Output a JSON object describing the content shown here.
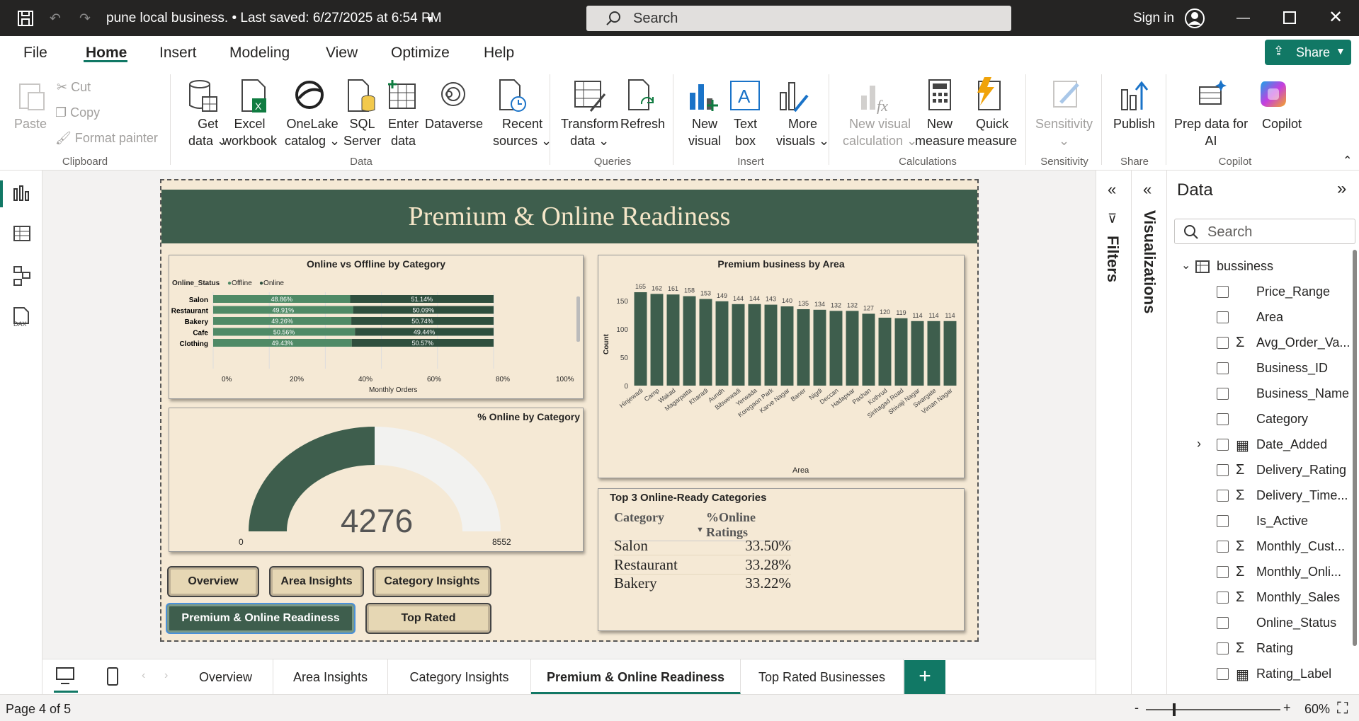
{
  "titlebar": {
    "title": "pune local business. • Last saved: 6/27/2025 at 6:54 PM",
    "search_placeholder": "Search",
    "sign_in": "Sign in"
  },
  "menu": {
    "items": [
      "File",
      "Home",
      "Insert",
      "Modeling",
      "View",
      "Optimize",
      "Help"
    ],
    "active": "Home",
    "share": "Share"
  },
  "ribbon": {
    "paste": "Paste",
    "cut": "Cut",
    "copy": "Copy",
    "format_painter": "Format painter",
    "get_data": "Get",
    "get_data2": "data",
    "excel": "Excel",
    "excel2": "workbook",
    "onelake": "OneLake",
    "onelake2": "catalog",
    "sql": "SQL",
    "sql2": "Server",
    "enter": "Enter",
    "enter2": "data",
    "dataverse": "Dataverse",
    "recent": "Recent",
    "recent2": "sources",
    "transform": "Transform",
    "transform2": "data",
    "refresh": "Refresh",
    "new_visual": "New",
    "new_visual2": "visual",
    "text_box": "Text",
    "text_box2": "box",
    "more_visuals": "More",
    "more_visuals2": "visuals",
    "new_visual_calc": "New visual",
    "new_visual_calc2": "calculation",
    "new_measure": "New",
    "new_measure2": "measure",
    "quick_measure": "Quick",
    "quick_measure2": "measure",
    "sensitivity": "Sensitivity",
    "publish": "Publish",
    "prep_ai": "Prep data for",
    "prep_ai2": "AI",
    "copilot": "Copilot",
    "groups": {
      "clipboard": "Clipboard",
      "data": "Data",
      "queries": "Queries",
      "insert": "Insert",
      "calculations": "Calculations",
      "sensitivity": "Sensitivity",
      "share": "Share",
      "copilot": "Copilot"
    }
  },
  "report": {
    "title": "Premium & Online Readiness",
    "bar100": {
      "title": "Online vs Offline by Category",
      "legend_title": "Online_Status",
      "legend": [
        "Offline",
        "Online"
      ],
      "xlabel": "Monthly Orders",
      "ticks": [
        "0%",
        "20%",
        "40%",
        "60%",
        "80%",
        "100%"
      ]
    },
    "gauge": {
      "title": "% Online by Category",
      "value": "4276",
      "min": "0",
      "max": "8552"
    },
    "column": {
      "title": "Premium business by Area",
      "xlabel": "Area",
      "ylabel": "Count",
      "yticks": [
        "0",
        "50",
        "100",
        "150"
      ]
    },
    "table": {
      "title": "Top 3 Online-Ready Categories",
      "headers": [
        "Category",
        "%Online Ratings"
      ],
      "rows": [
        [
          "Salon",
          "33.50%"
        ],
        [
          "Restaurant",
          "33.28%"
        ],
        [
          "Bakery",
          "33.22%"
        ]
      ]
    },
    "buttons": [
      "Overview",
      "Area Insights",
      "Category Insights",
      "Premium & Online Readiness",
      "Top Rated"
    ]
  },
  "chart_data": [
    {
      "type": "bar",
      "title": "Online vs Offline by Category",
      "categories": [
        "Salon",
        "Restaurant",
        "Bakery",
        "Cafe",
        "Clothing"
      ],
      "series": [
        {
          "name": "Offline",
          "values": [
            48.86,
            49.91,
            49.26,
            50.56,
            49.43
          ],
          "labels": [
            "48.86%",
            "49.91%",
            "49.26%",
            "50.56%",
            "49.43%"
          ]
        },
        {
          "name": "Online",
          "values": [
            51.14,
            50.09,
            50.74,
            49.44,
            50.57
          ],
          "labels": [
            "51.14%",
            "50.09%",
            "50.74%",
            "49.44%",
            "50.57%"
          ]
        }
      ],
      "xlabel": "Monthly Orders",
      "xlim": [
        0,
        100
      ],
      "colors": [
        "#4f8a66",
        "#2f4f3e"
      ]
    },
    {
      "type": "bar",
      "title": "Premium business by Area",
      "categories": [
        "Hinjewadi",
        "Camp",
        "Wakad",
        "Magarpatta",
        "Kharadi",
        "Aundh",
        "Bibwewadi",
        "Yerwada",
        "Koregaon Park",
        "Karve Nagar",
        "Baner",
        "Nigdi",
        "Deccan",
        "Hadapsar",
        "Pashan",
        "Kothrud",
        "Sinhagad Road",
        "Shivaji Nagar",
        "Swargate",
        "Viman Nagar"
      ],
      "values": [
        165,
        162,
        161,
        158,
        153,
        149,
        144,
        144,
        143,
        140,
        135,
        134,
        132,
        132,
        127,
        120,
        119,
        114,
        114,
        114
      ],
      "xlabel": "Area",
      "ylabel": "Count",
      "ylim": [
        0,
        170
      ],
      "color": "#3e5e4d"
    }
  ],
  "filters_label": "Filters",
  "viz_label": "Visualizations",
  "data_pane": {
    "title": "Data",
    "search_placeholder": "Search",
    "table_name": "bussiness",
    "fields": [
      {
        "name": "Price_Range",
        "sigma": ""
      },
      {
        "name": "Area",
        "sigma": ""
      },
      {
        "name": "Avg_Order_Va...",
        "sigma": "Σ"
      },
      {
        "name": "Business_ID",
        "sigma": ""
      },
      {
        "name": "Business_Name",
        "sigma": ""
      },
      {
        "name": "Category",
        "sigma": ""
      },
      {
        "name": "Date_Added",
        "sigma": "▦"
      },
      {
        "name": "Delivery_Rating",
        "sigma": "Σ"
      },
      {
        "name": "Delivery_Time...",
        "sigma": "Σ"
      },
      {
        "name": "Is_Active",
        "sigma": ""
      },
      {
        "name": "Monthly_Cust...",
        "sigma": "Σ"
      },
      {
        "name": "Monthly_Onli...",
        "sigma": "Σ"
      },
      {
        "name": "Monthly_Sales",
        "sigma": "Σ"
      },
      {
        "name": "Online_Status",
        "sigma": ""
      },
      {
        "name": "Rating",
        "sigma": "Σ"
      },
      {
        "name": "Rating_Label",
        "sigma": "▦"
      }
    ]
  },
  "tabs": [
    "Overview",
    "Area Insights",
    "Category Insights",
    "Premium & Online Readiness",
    "Top Rated Businesses"
  ],
  "active_tab": "Premium & Online Readiness",
  "status": {
    "page": "Page 4 of 5",
    "zoom": "60%",
    "minus": "-",
    "plus": "+"
  }
}
